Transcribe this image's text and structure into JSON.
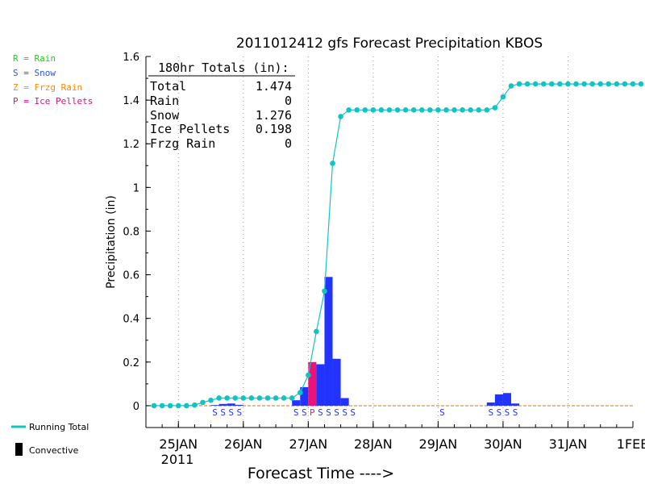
{
  "chart_data": {
    "type": "bar",
    "title": "2011012412 gfs Forecast Precipitation KBOS",
    "xlabel": "Forecast Time ---->",
    "ylabel": "Precipitation (in)",
    "ylim": [
      -0.1,
      1.6
    ],
    "yticks": [
      "0",
      "0.2",
      "0.4",
      "0.6",
      "0.8",
      "1",
      "1.2",
      "1.4",
      "1.6"
    ],
    "x_axis_start": "2011-01-24T12Z",
    "x_axis_end": "2011-02-01T00Z",
    "xticks": [
      "25JAN",
      "26JAN",
      "27JAN",
      "28JAN",
      "29JAN",
      "30JAN",
      "31JAN",
      "1FEB"
    ],
    "year_label": "2011",
    "grid": "vertical dotted at each day",
    "legend": {
      "position": "left",
      "entries": [
        {
          "label": "R = Rain",
          "color": "#22cc22"
        },
        {
          "label": "S = Snow",
          "color": "#2255ff"
        },
        {
          "label": "Z = Frzg Rain",
          "color": "#ff8800"
        },
        {
          "label": "P = Ice Pellets",
          "color": "#dd1188"
        }
      ],
      "running_total_label": "Running Total",
      "convective_label": "Convective"
    },
    "totals": {
      "header": "180hr Totals (in):",
      "rows": [
        {
          "label": "Total",
          "value": "1.474"
        },
        {
          "label": "Rain",
          "value": "0"
        },
        {
          "label": "Snow",
          "value": "1.276"
        },
        {
          "label": "Ice Pellets",
          "value": "0.198"
        },
        {
          "label": "Frzg Rain",
          "value": "0"
        }
      ]
    },
    "bars": [
      {
        "time": "2011-01-25T15Z",
        "value": 0.003,
        "type": "snow"
      },
      {
        "time": "2011-01-25T18Z",
        "value": 0.008,
        "type": "snow"
      },
      {
        "time": "2011-01-25T21Z",
        "value": 0.01,
        "type": "snow"
      },
      {
        "time": "2011-01-26T00Z",
        "value": 0.004,
        "type": "snow"
      },
      {
        "time": "2011-01-26T21Z",
        "value": 0.025,
        "type": "snow"
      },
      {
        "time": "2011-01-27T00Z",
        "value": 0.085,
        "type": "snow"
      },
      {
        "time": "2011-01-27T03Z",
        "value": 0.2,
        "type": "ice_pellets"
      },
      {
        "time": "2011-01-27T06Z",
        "value": 0.19,
        "type": "snow"
      },
      {
        "time": "2011-01-27T09Z",
        "value": 0.59,
        "type": "snow"
      },
      {
        "time": "2011-01-27T12Z",
        "value": 0.215,
        "type": "snow"
      },
      {
        "time": "2011-01-27T15Z",
        "value": 0.035,
        "type": "snow"
      },
      {
        "time": "2011-01-29T21Z",
        "value": 0.015,
        "type": "snow"
      },
      {
        "time": "2011-01-30T00Z",
        "value": 0.052,
        "type": "snow"
      },
      {
        "time": "2011-01-30T03Z",
        "value": 0.058,
        "type": "snow"
      },
      {
        "time": "2011-01-30T06Z",
        "value": 0.01,
        "type": "snow"
      }
    ],
    "ptype_markers": [
      {
        "time": "2011-01-25T15Z",
        "letter": "S"
      },
      {
        "time": "2011-01-25T18Z",
        "letter": "S"
      },
      {
        "time": "2011-01-25T21Z",
        "letter": "S"
      },
      {
        "time": "2011-01-26T00Z",
        "letter": "S"
      },
      {
        "time": "2011-01-26T21Z",
        "letter": "S"
      },
      {
        "time": "2011-01-27T00Z",
        "letter": "S"
      },
      {
        "time": "2011-01-27T03Z",
        "letter": "P"
      },
      {
        "time": "2011-01-27T06Z",
        "letter": "S"
      },
      {
        "time": "2011-01-27T09Z",
        "letter": "S"
      },
      {
        "time": "2011-01-27T12Z",
        "letter": "S"
      },
      {
        "time": "2011-01-27T15Z",
        "letter": "S"
      },
      {
        "time": "2011-01-27T18Z",
        "letter": "S"
      },
      {
        "time": "2011-01-29T03Z",
        "letter": "S"
      },
      {
        "time": "2011-01-29T21Z",
        "letter": "S"
      },
      {
        "time": "2011-01-30T00Z",
        "letter": "S"
      },
      {
        "time": "2011-01-30T03Z",
        "letter": "S"
      },
      {
        "time": "2011-01-30T06Z",
        "letter": "S"
      }
    ],
    "running_total": {
      "start_time": "2011-01-24T15Z",
      "step_hours": 3,
      "values": [
        0,
        0,
        0,
        0,
        0,
        0.003,
        0.015,
        0.025,
        0.035,
        0.035,
        0.035,
        0.035,
        0.035,
        0.035,
        0.035,
        0.035,
        0.035,
        0.035,
        0.06,
        0.14,
        0.34,
        0.525,
        1.11,
        1.325,
        1.355,
        1.355,
        1.355,
        1.355,
        1.355,
        1.355,
        1.355,
        1.355,
        1.355,
        1.355,
        1.355,
        1.355,
        1.355,
        1.355,
        1.355,
        1.355,
        1.355,
        1.355,
        1.365,
        1.415,
        1.465,
        1.474,
        1.474,
        1.474,
        1.474,
        1.474,
        1.474,
        1.474,
        1.474,
        1.474,
        1.474,
        1.474,
        1.474,
        1.474,
        1.474,
        1.474,
        1.474
      ]
    },
    "colors": {
      "snow": "#2233ff",
      "ice_pellets": "#ee1177",
      "running_total": "#11c4c4",
      "zero_line": "#cc7722"
    }
  }
}
